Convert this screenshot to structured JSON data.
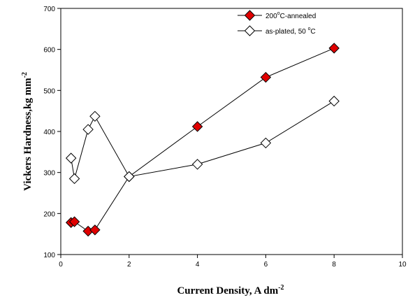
{
  "chart_data": {
    "type": "line",
    "xlabel": "Current Density, A dm",
    "xlabel_sup": "-2",
    "ylabel": "Vickers Hardness,kg mm",
    "ylabel_sup": "-2",
    "xlim": [
      0,
      10
    ],
    "ylim": [
      100,
      700
    ],
    "xticks": [
      "0",
      "2",
      "4",
      "6",
      "8",
      "10"
    ],
    "yticks": [
      "100",
      "200",
      "300",
      "400",
      "500",
      "600",
      "700"
    ],
    "legend_position": "top-right",
    "series": [
      {
        "name": "200",
        "name_sup": "o",
        "name_rest": "C-annealed",
        "marker": "diamond-filled",
        "color": "#e00000",
        "x": [
          0.3,
          0.4,
          0.8,
          1.0,
          2.0,
          4.0,
          6.0,
          8.0
        ],
        "y": [
          178,
          180,
          157,
          160,
          290,
          412,
          532,
          603
        ]
      },
      {
        "name": "as-plated, 50 ",
        "name_sup": "o",
        "name_rest": "C",
        "marker": "diamond-open",
        "color": "#ffffff",
        "x": [
          0.3,
          0.4,
          0.8,
          1.0,
          2.0,
          4.0,
          6.0,
          8.0
        ],
        "y": [
          335,
          285,
          405,
          437,
          290,
          320,
          372,
          474
        ]
      }
    ]
  }
}
